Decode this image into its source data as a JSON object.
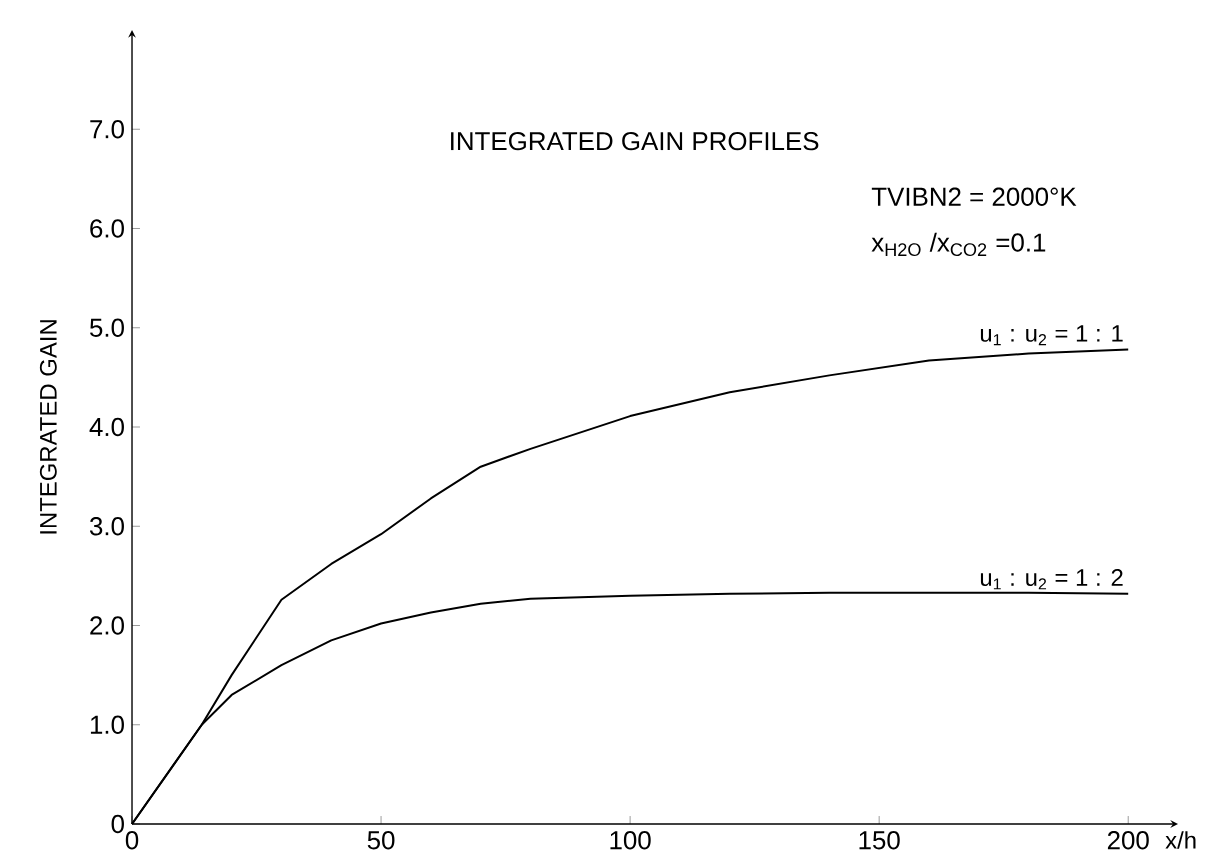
{
  "chart_data": {
    "type": "line",
    "title": "INTEGRATED GAIN PROFILES",
    "xlabel": "x/h",
    "ylabel": "INTEGRATED GAIN",
    "annotations": [
      "TVIBN2 = 2000°K",
      "x$_{H2O}$ /x$_{CO2}$ =0.1"
    ],
    "x": [
      0,
      7,
      14,
      20,
      30,
      40,
      50,
      60,
      70,
      80,
      100,
      120,
      140,
      160,
      180,
      200
    ],
    "series": [
      {
        "name": "u$_{1}$ : u$_{2}$ = 1 : 1",
        "color": "#000000",
        "values": [
          0,
          0.5,
          1.0,
          1.5,
          2.26,
          2.62,
          2.92,
          3.28,
          3.6,
          3.78,
          4.11,
          4.35,
          4.52,
          4.67,
          4.74,
          4.78
        ]
      },
      {
        "name": "u$_{1}$ : u$_{2}$ = 1 : 2",
        "color": "#000000",
        "values": [
          0,
          0.5,
          1.0,
          1.3,
          1.6,
          1.85,
          2.02,
          2.13,
          2.22,
          2.27,
          2.3,
          2.32,
          2.33,
          2.33,
          2.33,
          2.32
        ]
      }
    ],
    "xlim": [
      0,
      210
    ],
    "ylim": [
      0,
      8
    ],
    "xticks": [
      0,
      50,
      100,
      150,
      200
    ],
    "yticks": [
      0,
      {
        "value": 1,
        "label": "1.0"
      },
      {
        "value": 2,
        "label": "2.0"
      },
      {
        "value": 3,
        "label": "3.0"
      },
      {
        "value": 4,
        "label": "4.0"
      },
      {
        "value": 5,
        "label": "5.0"
      },
      {
        "value": 6,
        "label": "6.0"
      },
      {
        "value": 7,
        "label": "7.0"
      }
    ],
    "grid": false,
    "legend": false,
    "marker": "none",
    "line_style": "solid"
  }
}
